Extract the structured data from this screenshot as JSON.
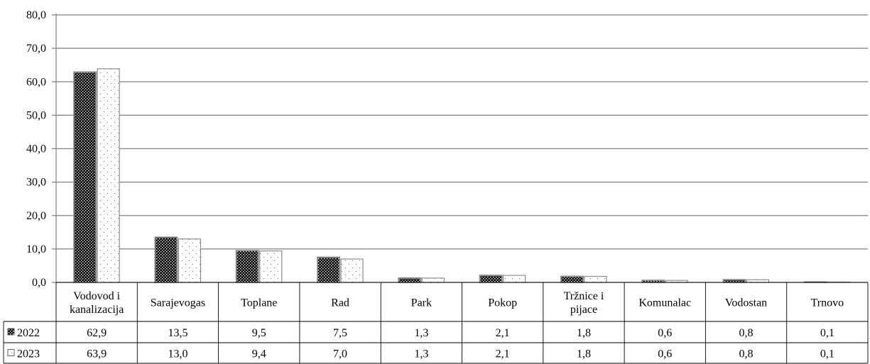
{
  "chart_data": {
    "type": "bar",
    "title": "",
    "xlabel": "",
    "ylabel": "",
    "ylim": [
      0,
      80
    ],
    "yticks": [
      "0,0",
      "10,0",
      "20,0",
      "30,0",
      "40,0",
      "50,0",
      "60,0",
      "70,0",
      "80,0"
    ],
    "grid": true,
    "legend": "data-table",
    "categories": [
      [
        "Vodovod i",
        "kanalizacija"
      ],
      [
        "Sarajevogas"
      ],
      [
        "Toplane"
      ],
      [
        "Rad"
      ],
      [
        "Park"
      ],
      [
        "Pokop"
      ],
      [
        "Tržnice i",
        "pijace"
      ],
      [
        "Komunalac"
      ],
      [
        "Vodostan"
      ],
      [
        "Trnovo"
      ]
    ],
    "series": [
      {
        "name": "2022",
        "pattern": "dense-checker",
        "values": [
          62.9,
          13.5,
          9.5,
          7.5,
          1.3,
          2.1,
          1.8,
          0.6,
          0.8,
          0.1
        ],
        "labels": [
          "62,9",
          "13,5",
          "9,5",
          "7,5",
          "1,3",
          "2,1",
          "1,8",
          "0,6",
          "0,8",
          "0,1"
        ]
      },
      {
        "name": "2023",
        "pattern": "sparse-dots",
        "values": [
          63.9,
          13.0,
          9.4,
          7.0,
          1.3,
          2.1,
          1.8,
          0.6,
          0.8,
          0.1
        ],
        "labels": [
          "63,9",
          "13,0",
          "9,4",
          "7,0",
          "1,3",
          "2,1",
          "1,8",
          "0,6",
          "0,8",
          "0,1"
        ]
      }
    ],
    "colors": {
      "gridline": "#808080",
      "axis": "#808080",
      "bar_outline": "#8c8c8c",
      "dark_fill": "#000000",
      "light_fill": "#ffffff"
    }
  }
}
